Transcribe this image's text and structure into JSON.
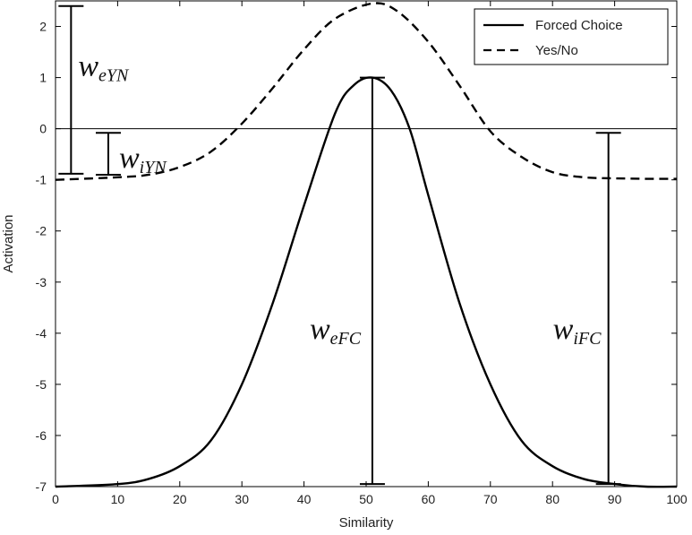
{
  "chart_data": {
    "type": "line",
    "title": "",
    "xlabel": "Similarity",
    "ylabel": "Activation",
    "xlim": [
      0,
      100
    ],
    "ylim": [
      -7,
      2.5
    ],
    "x_ticks": [
      0,
      10,
      20,
      30,
      40,
      50,
      60,
      70,
      80,
      90,
      100
    ],
    "y_ticks": [
      2,
      1,
      0,
      -1,
      -2,
      -3,
      -4,
      -5,
      -6,
      -7
    ],
    "grid": false,
    "legend_position": "top-right",
    "series": [
      {
        "name": "Forced Choice",
        "style": "solid",
        "color": "#000000",
        "x": [
          0,
          10,
          15,
          20,
          25,
          30,
          35,
          40,
          45,
          48,
          51,
          54,
          57,
          60,
          65,
          70,
          75,
          80,
          85,
          90,
          95,
          100
        ],
        "y": [
          -7.0,
          -6.95,
          -6.85,
          -6.6,
          -6.1,
          -5.0,
          -3.4,
          -1.5,
          0.3,
          0.85,
          1.0,
          0.75,
          0.0,
          -1.3,
          -3.4,
          -5.0,
          -6.1,
          -6.6,
          -6.85,
          -6.95,
          -7.0,
          -7.0
        ]
      },
      {
        "name": "Yes/No",
        "style": "dashed",
        "color": "#000000",
        "x": [
          0,
          10,
          15,
          20,
          25,
          30,
          35,
          40,
          45,
          51,
          55,
          60,
          65,
          70,
          75,
          80,
          85,
          90,
          95,
          100
        ],
        "y": [
          -1.0,
          -0.95,
          -0.9,
          -0.75,
          -0.45,
          0.1,
          0.8,
          1.55,
          2.15,
          2.45,
          2.3,
          1.7,
          0.85,
          -0.05,
          -0.55,
          -0.85,
          -0.95,
          -0.97,
          -0.98,
          -0.98
        ]
      }
    ],
    "annotations": [
      {
        "main": "w",
        "sub": "eYN",
        "bar_x": 2.5,
        "bar_y_from": -0.88,
        "bar_y_to": 2.4
      },
      {
        "main": "w",
        "sub": "iYN",
        "bar_x": 8.5,
        "bar_y_from": -0.9,
        "bar_y_to": -0.08
      },
      {
        "main": "w",
        "sub": "eFC",
        "bar_x": 51,
        "bar_y_from": -6.95,
        "bar_y_to": 1.0
      },
      {
        "main": "w",
        "sub": "iFC",
        "bar_x": 89,
        "bar_y_from": -6.95,
        "bar_y_to": -0.08
      }
    ]
  }
}
